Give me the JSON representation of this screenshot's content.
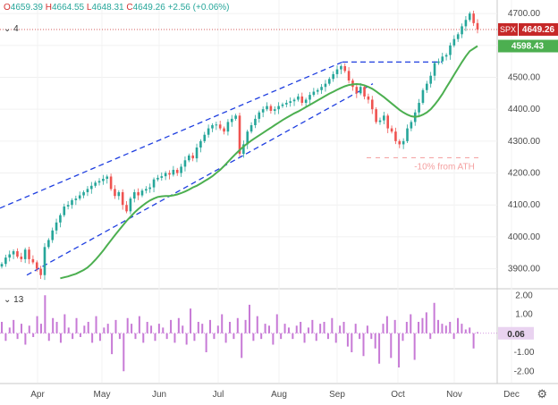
{
  "header": {
    "open_label": "O",
    "open": "4659.39",
    "high_label": "H",
    "high": "4664.55",
    "low_label": "L",
    "low": "4648.31",
    "close_label": "C",
    "close": "4649.26",
    "change": "+2.56 (+0.06%)"
  },
  "indicator_labels": {
    "main": "4",
    "sub": "13"
  },
  "colors": {
    "up": "#26a69a",
    "down": "#ef5350",
    "ma": "#4caf50",
    "hist": "#c77ad6",
    "channel": "#1f3fe0",
    "spx": "#c62828"
  },
  "chart_data": [
    {
      "type": "line",
      "ylim": [
        3840,
        4720
      ],
      "yticks": [
        "4700.00",
        "4600.00",
        "4500.00",
        "4400.00",
        "4300.00",
        "4200.00",
        "4100.00",
        "4000.00",
        "3900.00"
      ],
      "xlabels": [
        "Apr",
        "May",
        "Jun",
        "Jul",
        "Aug",
        "Sep",
        "Oct",
        "Nov",
        "Dec"
      ],
      "price_tag": {
        "name": "SPX",
        "value": "4649.26"
      },
      "ma_tag": {
        "value": "4598.43"
      },
      "annotation": "-10% from ATH",
      "series": [
        {
          "values": [
            3915,
            3935,
            3945,
            3955,
            3938,
            3930,
            3960,
            3930,
            3920,
            3900,
            3880,
            3968,
            3990,
            4020,
            4045,
            4068,
            4095,
            4100,
            4115,
            4120,
            4130,
            4140,
            4150,
            4160,
            4170,
            4175,
            4182,
            4189,
            4150,
            4128,
            4140,
            4100,
            4080,
            4120,
            4140,
            4130,
            4145,
            4150,
            4155,
            4180,
            4185,
            4190,
            4200,
            4195,
            4210,
            4200,
            4220,
            4240,
            4255,
            4246,
            4280,
            4300,
            4320,
            4340,
            4350,
            4352,
            4340,
            4330,
            4360,
            4370,
            4380,
            4260,
            4290,
            4330,
            4350,
            4370,
            4390,
            4400,
            4410,
            4395,
            4400,
            4410,
            4415,
            4420,
            4425,
            4430,
            4440,
            4420,
            4430,
            4445,
            4455,
            4460,
            4470,
            4480,
            4495,
            4510,
            4525,
            4535,
            4520,
            4490,
            4470,
            4450,
            4470,
            4440,
            4430,
            4400,
            4360,
            4365,
            4380,
            4340,
            4330,
            4300,
            4290,
            4300,
            4340,
            4360,
            4390,
            4420,
            4460,
            4480,
            4505,
            4545,
            4550,
            4565,
            4570,
            4600,
            4620,
            4635,
            4660,
            4680,
            4700,
            4670,
            4650
          ]
        },
        {
          "values": [
            3870,
            3873,
            3876,
            3880,
            3884,
            3890,
            3896,
            3904,
            3915,
            3928,
            3942,
            3957,
            3973,
            3989,
            4005,
            4020,
            4035,
            4050,
            4063,
            4076,
            4087,
            4097,
            4106,
            4114,
            4120,
            4125,
            4127,
            4128,
            4128,
            4130,
            4133,
            4137,
            4142,
            4148,
            4155,
            4160,
            4167,
            4175,
            4182,
            4190,
            4200,
            4210,
            4222,
            4235,
            4248,
            4260,
            4272,
            4283,
            4293,
            4302,
            4310,
            4318,
            4326,
            4334,
            4342,
            4350,
            4358,
            4366,
            4373,
            4380,
            4387,
            4393,
            4400,
            4407,
            4414,
            4421,
            4428,
            4435,
            4442,
            4449,
            4455,
            4461,
            4467,
            4472,
            4476,
            4478,
            4479,
            4478,
            4475,
            4470,
            4464,
            4456,
            4447,
            4438,
            4428,
            4418,
            4408,
            4398,
            4390,
            4383,
            4378,
            4376,
            4378,
            4383,
            4390,
            4400,
            4414,
            4430,
            4448,
            4468,
            4488,
            4508,
            4528,
            4548,
            4566,
            4582,
            4590,
            4598
          ]
        }
      ]
    },
    {
      "type": "bar",
      "ylim": [
        -2.6,
        2.2
      ],
      "yticks": [
        "2.00",
        "1.00",
        "0.00",
        "-1.00",
        "-2.00"
      ],
      "last_value": "0.06",
      "values": [
        0.6,
        -0.4,
        0.3,
        0.7,
        -0.3,
        0.5,
        -0.6,
        0.4,
        -0.2,
        0.9,
        0.5,
        2.0,
        -0.4,
        0.8,
        0.6,
        -0.5,
        1.0,
        0.3,
        -0.3,
        0.8,
        -0.2,
        0.4,
        0.6,
        -0.5,
        0.9,
        -0.4,
        0.3,
        0.5,
        -1.1,
        0.7,
        -0.3,
        -2.0,
        0.8,
        0.5,
        -0.3,
        0.9,
        -0.5,
        0.6,
        0.4,
        -0.4,
        0.5,
        0.3,
        -0.3,
        0.7,
        -0.5,
        0.8,
        0.4,
        -0.6,
        1.3,
        -0.4,
        0.6,
        0.5,
        -1.0,
        0.7,
        -0.3,
        0.4,
        1.0,
        -0.5,
        0.6,
        -0.3,
        0.8,
        -1.3,
        0.7,
        1.5,
        -0.4,
        0.9,
        -0.3,
        0.5,
        0.4,
        -0.6,
        1.0,
        -0.3,
        0.5,
        0.3,
        -0.3,
        0.4,
        0.6,
        -0.5,
        0.3,
        0.7,
        -0.4,
        0.5,
        0.6,
        -0.3,
        0.8,
        -0.5,
        0.4,
        0.6,
        -0.7,
        -1.0,
        0.5,
        -0.3,
        -1.2,
        0.4,
        -0.3,
        -0.8,
        -1.6,
        0.5,
        0.9,
        -1.3,
        0.7,
        -1.8,
        -0.4,
        0.6,
        1.0,
        -1.4,
        0.6,
        0.8,
        1.1,
        -0.3,
        1.6,
        0.7,
        0.5,
        0.4,
        0.6,
        -0.3,
        0.8,
        0.5,
        0.2,
        0.3,
        -0.8,
        0.06
      ]
    }
  ]
}
